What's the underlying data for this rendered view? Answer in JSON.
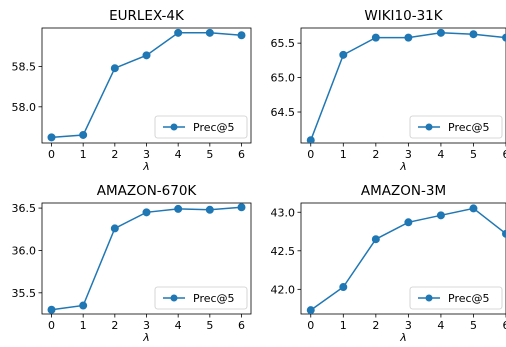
{
  "series_color": "#1f77b4",
  "chart_data": [
    {
      "type": "line",
      "title": "EURLEX-4K",
      "xlabel": "λ",
      "ylabel": "",
      "x": [
        0,
        1,
        2,
        3,
        4,
        5,
        6
      ],
      "x_tick_labels": [
        "0",
        "1",
        "2",
        "3",
        "4",
        "5",
        "6"
      ],
      "xlim": [
        -0.3,
        6.3
      ],
      "ylim": [
        57.55,
        58.98
      ],
      "yticks": [
        58.0,
        58.5
      ],
      "ytick_labels": [
        "58.0",
        "58.5"
      ],
      "series": [
        {
          "name": "Prec@5",
          "values": [
            57.62,
            57.65,
            58.48,
            58.64,
            58.92,
            58.92,
            58.89
          ]
        }
      ],
      "legend": "lower-right",
      "grid": false
    },
    {
      "type": "line",
      "title": "WIKI10-31K",
      "xlabel": "λ",
      "ylabel": "",
      "x": [
        0,
        1,
        2,
        3,
        4,
        5,
        6
      ],
      "x_tick_labels": [
        "0",
        "1",
        "2",
        "3",
        "4",
        "5",
        "6"
      ],
      "xlim": [
        -0.3,
        6.0
      ],
      "ylim": [
        64.05,
        65.72
      ],
      "yticks": [
        64.5,
        65.0,
        65.5
      ],
      "ytick_labels": [
        "64.5",
        "65.0",
        "65.5"
      ],
      "series": [
        {
          "name": "Prec@5",
          "values": [
            64.09,
            65.33,
            65.58,
            65.58,
            65.65,
            65.63,
            65.58
          ]
        }
      ],
      "legend": "lower-right",
      "grid": false
    },
    {
      "type": "line",
      "title": "AMAZON-670K",
      "xlabel": "λ",
      "ylabel": "",
      "x": [
        0,
        1,
        2,
        3,
        4,
        5,
        6
      ],
      "x_tick_labels": [
        "0",
        "1",
        "2",
        "3",
        "4",
        "5",
        "6"
      ],
      "xlim": [
        -0.3,
        6.3
      ],
      "ylim": [
        35.25,
        36.56
      ],
      "yticks": [
        35.5,
        36.0,
        36.5
      ],
      "ytick_labels": [
        "35.5",
        "36.0",
        "36.5"
      ],
      "series": [
        {
          "name": "Prec@5",
          "values": [
            35.3,
            35.35,
            36.26,
            36.45,
            36.49,
            36.48,
            36.51
          ]
        }
      ],
      "legend": "lower-right",
      "grid": false
    },
    {
      "type": "line",
      "title": "AMAZON-3M",
      "xlabel": "λ",
      "ylabel": "",
      "x": [
        0,
        1,
        2,
        3,
        4,
        5,
        6
      ],
      "x_tick_labels": [
        "0",
        "1",
        "2",
        "3",
        "4",
        "5",
        "6"
      ],
      "xlim": [
        -0.3,
        6.0
      ],
      "ylim": [
        41.68,
        43.12
      ],
      "yticks": [
        42.0,
        42.5,
        43.0
      ],
      "ytick_labels": [
        "42.0",
        "42.5",
        "43.0"
      ],
      "series": [
        {
          "name": "Prec@5",
          "values": [
            41.73,
            42.03,
            42.65,
            42.87,
            42.96,
            43.05,
            42.72
          ]
        }
      ],
      "legend": "lower-right",
      "grid": false
    }
  ]
}
